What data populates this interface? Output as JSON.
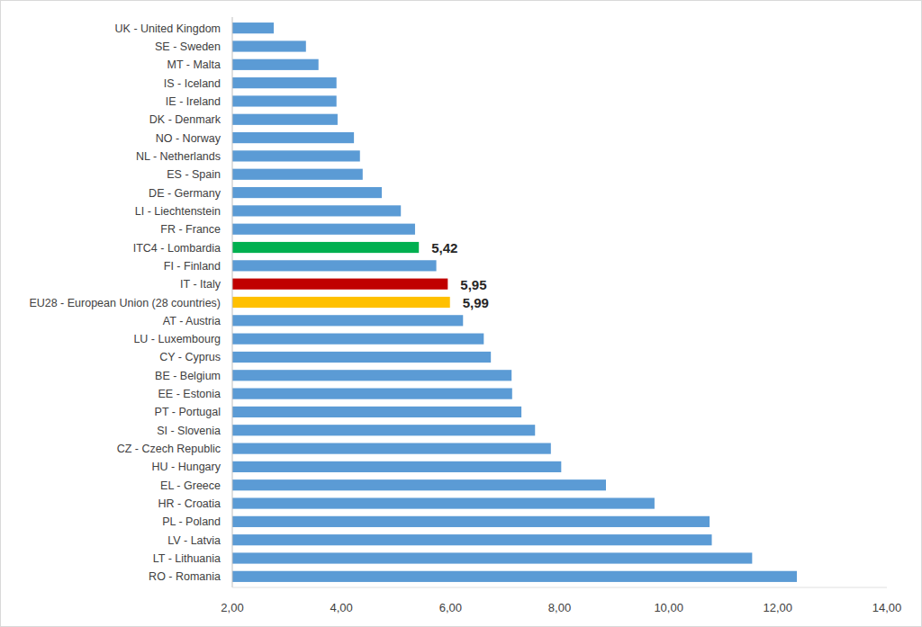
{
  "chart_data": {
    "type": "bar",
    "orientation": "horizontal",
    "categories": [
      "UK - United Kingdom",
      "SE - Sweden",
      "MT - Malta",
      "IS - Iceland",
      "IE - Ireland",
      "DK - Denmark",
      "NO - Norway",
      "NL - Netherlands",
      "ES - Spain",
      "DE - Germany",
      "LI - Liechtenstein",
      "FR - France",
      "ITC4 - Lombardia",
      "FI - Finland",
      "IT - Italy",
      "EU28 - European Union (28 countries)",
      "AT - Austria",
      "LU - Luxembourg",
      "CY - Cyprus",
      "BE - Belgium",
      "EE - Estonia",
      "PT - Portugal",
      "SI - Slovenia",
      "CZ - Czech Republic",
      "HU - Hungary",
      "EL - Greece",
      "HR - Croatia",
      "PL - Poland",
      "LV - Latvia",
      "LT - Lithuania",
      "RO - Romania"
    ],
    "values": [
      2.76,
      3.35,
      3.58,
      3.91,
      3.91,
      3.93,
      4.23,
      4.34,
      4.39,
      4.74,
      5.09,
      5.35,
      5.42,
      5.74,
      5.95,
      5.99,
      6.23,
      6.61,
      6.74,
      7.12,
      7.13,
      7.3,
      7.55,
      7.84,
      8.03,
      8.85,
      9.74,
      10.75,
      10.79,
      11.53,
      12.35
    ],
    "value_labels": [
      null,
      null,
      null,
      null,
      null,
      null,
      null,
      null,
      null,
      null,
      null,
      null,
      "5,42",
      null,
      "5,95",
      "5,99",
      null,
      null,
      null,
      null,
      null,
      null,
      null,
      null,
      null,
      null,
      null,
      null,
      null,
      null,
      null
    ],
    "data_labels": true,
    "colors": [
      "#5b9bd5",
      "#5b9bd5",
      "#5b9bd5",
      "#5b9bd5",
      "#5b9bd5",
      "#5b9bd5",
      "#5b9bd5",
      "#5b9bd5",
      "#5b9bd5",
      "#5b9bd5",
      "#5b9bd5",
      "#5b9bd5",
      "#00b050",
      "#5b9bd5",
      "#c00000",
      "#ffc000",
      "#5b9bd5",
      "#5b9bd5",
      "#5b9bd5",
      "#5b9bd5",
      "#5b9bd5",
      "#5b9bd5",
      "#5b9bd5",
      "#5b9bd5",
      "#5b9bd5",
      "#5b9bd5",
      "#5b9bd5",
      "#5b9bd5",
      "#5b9bd5",
      "#5b9bd5",
      "#5b9bd5"
    ],
    "xlim": [
      2,
      14
    ],
    "xticks": [
      {
        "value": 2,
        "label": "2,00"
      },
      {
        "value": 4,
        "label": "4,00"
      },
      {
        "value": 6,
        "label": "6,00"
      },
      {
        "value": 8,
        "label": "8,00"
      },
      {
        "value": 10,
        "label": "10,00"
      },
      {
        "value": 12,
        "label": "12,00"
      },
      {
        "value": 14,
        "label": "14,00"
      }
    ],
    "grid": false
  }
}
